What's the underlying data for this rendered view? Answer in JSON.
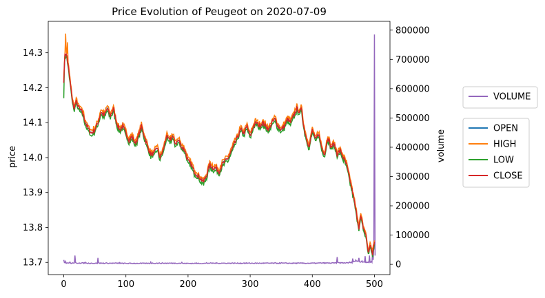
{
  "chart_data": {
    "type": "line",
    "title": "Price Evolution of Peugeot on 2020-07-09",
    "xlabel": "",
    "ylabel_left": "price",
    "ylabel_right": "volume",
    "x_ticks": [
      0,
      100,
      200,
      300,
      400,
      500
    ],
    "y_left_ticks": [
      13.7,
      13.8,
      13.9,
      14.0,
      14.1,
      14.2,
      14.3
    ],
    "y_right_ticks": [
      0,
      100000,
      200000,
      300000,
      400000,
      500000,
      600000,
      700000,
      800000
    ],
    "y_right_tick_labels": [
      "0",
      "100000",
      "200000",
      "300000",
      "400000",
      "500000",
      "600000",
      "700000",
      "800000"
    ],
    "xlim": [
      -25,
      525
    ],
    "ylim_left": [
      13.665,
      14.39
    ],
    "ylim_right": [
      -35000,
      830000
    ],
    "colors": {
      "OPEN": "#1f77b4",
      "HIGH": "#ff7f0e",
      "LOW": "#2ca02c",
      "CLOSE": "#d62728",
      "VOLUME": "#9467bd"
    },
    "legend_volume": [
      "VOLUME"
    ],
    "legend_price": [
      "OPEN",
      "HIGH",
      "LOW",
      "CLOSE"
    ],
    "price_keypoints": [
      [
        0,
        14.22
      ],
      [
        2,
        14.3
      ],
      [
        5,
        14.29
      ],
      [
        8,
        14.25
      ],
      [
        12,
        14.19
      ],
      [
        16,
        14.14
      ],
      [
        20,
        14.16
      ],
      [
        25,
        14.14
      ],
      [
        30,
        14.13
      ],
      [
        35,
        14.1
      ],
      [
        40,
        14.08
      ],
      [
        45,
        14.07
      ],
      [
        50,
        14.08
      ],
      [
        55,
        14.1
      ],
      [
        60,
        14.13
      ],
      [
        65,
        14.12
      ],
      [
        70,
        14.14
      ],
      [
        75,
        14.12
      ],
      [
        80,
        14.14
      ],
      [
        85,
        14.1
      ],
      [
        90,
        14.08
      ],
      [
        95,
        14.09
      ],
      [
        100,
        14.07
      ],
      [
        105,
        14.05
      ],
      [
        110,
        14.06
      ],
      [
        115,
        14.04
      ],
      [
        120,
        14.06
      ],
      [
        125,
        14.09
      ],
      [
        130,
        14.06
      ],
      [
        135,
        14.03
      ],
      [
        140,
        14.01
      ],
      [
        145,
        14.01
      ],
      [
        150,
        14.03
      ],
      [
        155,
        14.0
      ],
      [
        160,
        14.02
      ],
      [
        165,
        14.06
      ],
      [
        170,
        14.05
      ],
      [
        175,
        14.06
      ],
      [
        180,
        14.04
      ],
      [
        185,
        14.05
      ],
      [
        190,
        14.03
      ],
      [
        195,
        14.02
      ],
      [
        200,
        13.99
      ],
      [
        205,
        13.98
      ],
      [
        210,
        13.96
      ],
      [
        215,
        13.95
      ],
      [
        220,
        13.94
      ],
      [
        225,
        13.93
      ],
      [
        230,
        13.95
      ],
      [
        235,
        13.98
      ],
      [
        240,
        13.97
      ],
      [
        245,
        13.97
      ],
      [
        250,
        13.96
      ],
      [
        255,
        13.98
      ],
      [
        260,
        13.99
      ],
      [
        265,
        14.0
      ],
      [
        270,
        14.02
      ],
      [
        275,
        14.04
      ],
      [
        280,
        14.06
      ],
      [
        285,
        14.08
      ],
      [
        290,
        14.07
      ],
      [
        295,
        14.09
      ],
      [
        300,
        14.06
      ],
      [
        305,
        14.09
      ],
      [
        310,
        14.1
      ],
      [
        315,
        14.09
      ],
      [
        320,
        14.1
      ],
      [
        325,
        14.09
      ],
      [
        330,
        14.08
      ],
      [
        335,
        14.1
      ],
      [
        340,
        14.11
      ],
      [
        345,
        14.09
      ],
      [
        350,
        14.08
      ],
      [
        355,
        14.09
      ],
      [
        360,
        14.11
      ],
      [
        365,
        14.1
      ],
      [
        370,
        14.12
      ],
      [
        375,
        14.14
      ],
      [
        380,
        14.13
      ],
      [
        383,
        14.14
      ],
      [
        386,
        14.09
      ],
      [
        390,
        14.06
      ],
      [
        395,
        14.03
      ],
      [
        400,
        14.08
      ],
      [
        405,
        14.05
      ],
      [
        410,
        14.07
      ],
      [
        415,
        14.03
      ],
      [
        420,
        14.01
      ],
      [
        425,
        14.06
      ],
      [
        430,
        14.03
      ],
      [
        435,
        14.04
      ],
      [
        440,
        14.01
      ],
      [
        445,
        14.02
      ],
      [
        450,
        14.0
      ],
      [
        455,
        13.98
      ],
      [
        460,
        13.94
      ],
      [
        465,
        13.9
      ],
      [
        470,
        13.85
      ],
      [
        475,
        13.8
      ],
      [
        478,
        13.83
      ],
      [
        482,
        13.8
      ],
      [
        486,
        13.78
      ],
      [
        490,
        13.73
      ],
      [
        494,
        13.75
      ],
      [
        497,
        13.72
      ],
      [
        500,
        13.76
      ]
    ],
    "volume_keypoints": [
      [
        0,
        15000
      ],
      [
        1,
        6000
      ],
      [
        3,
        10000
      ],
      [
        6,
        5000
      ],
      [
        10,
        8000
      ],
      [
        15,
        4000
      ],
      [
        18,
        30000
      ],
      [
        19,
        6000
      ],
      [
        25,
        5000
      ],
      [
        35,
        7000
      ],
      [
        45,
        4000
      ],
      [
        55,
        22000
      ],
      [
        56,
        5000
      ],
      [
        70,
        4000
      ],
      [
        90,
        6000
      ],
      [
        120,
        3000
      ],
      [
        140,
        8000
      ],
      [
        160,
        4000
      ],
      [
        190,
        7000
      ],
      [
        210,
        3000
      ],
      [
        230,
        6000
      ],
      [
        260,
        4000
      ],
      [
        290,
        5000
      ],
      [
        320,
        4000
      ],
      [
        350,
        6000
      ],
      [
        380,
        4000
      ],
      [
        410,
        5000
      ],
      [
        438,
        6000
      ],
      [
        440,
        25000
      ],
      [
        442,
        6000
      ],
      [
        460,
        8000
      ],
      [
        465,
        20000
      ],
      [
        470,
        15000
      ],
      [
        475,
        22000
      ],
      [
        480,
        12000
      ],
      [
        485,
        28000
      ],
      [
        490,
        8000
      ],
      [
        492,
        30000
      ],
      [
        495,
        10000
      ],
      [
        497,
        45000
      ],
      [
        498,
        15000
      ],
      [
        499,
        60000
      ],
      [
        500,
        785000
      ],
      [
        501,
        30000
      ]
    ]
  }
}
